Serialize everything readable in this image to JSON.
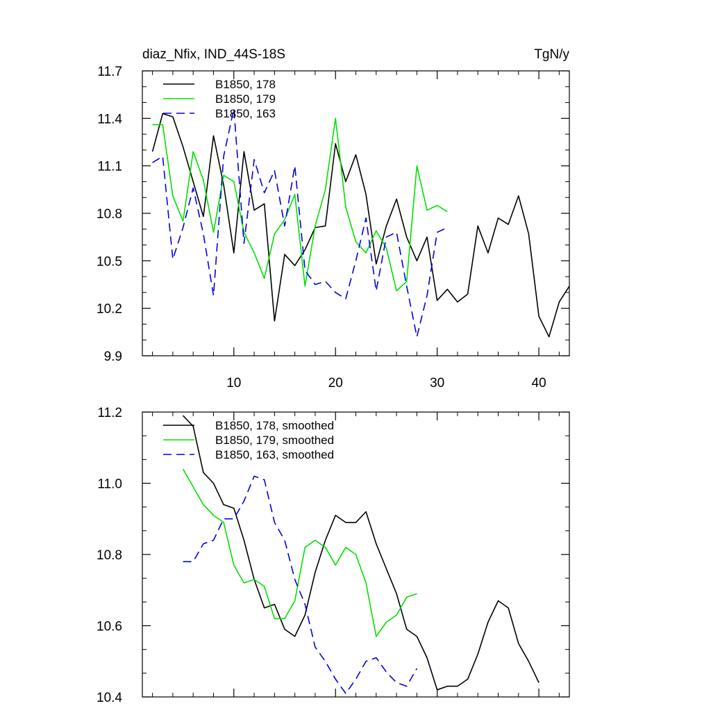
{
  "header": {
    "left_title": "diaz_Nfix, IND_44S-18S",
    "right_title": "TgN/y"
  },
  "chart_data": [
    {
      "type": "line",
      "xlim": [
        1,
        43
      ],
      "ylim": [
        9.9,
        11.7
      ],
      "xticks": [
        10,
        20,
        30,
        40
      ],
      "xtick_labels": [
        "10",
        "20",
        "30",
        "40"
      ],
      "yticks": [
        9.9,
        10.2,
        10.5,
        10.8,
        11.1,
        11.4,
        11.7
      ],
      "ytick_labels": [
        "9.9",
        "10.2",
        "10.5",
        "10.8",
        "11.1",
        "11.4",
        "11.7"
      ],
      "legend_position": "top-left",
      "series": [
        {
          "name": "B1850, 178",
          "color": "#000000",
          "dash": "solid",
          "x": [
            2,
            3,
            4,
            5,
            6,
            7,
            8,
            9,
            10,
            11,
            12,
            13,
            14,
            15,
            16,
            17,
            18,
            19,
            20,
            21,
            22,
            23,
            24,
            25,
            26,
            27,
            28,
            29,
            30,
            31,
            32,
            33,
            34,
            35,
            36,
            37,
            38,
            39,
            40,
            41,
            42,
            43
          ],
          "y": [
            11.19,
            11.43,
            11.41,
            11.22,
            11.0,
            10.78,
            11.29,
            10.98,
            10.55,
            11.19,
            10.82,
            10.86,
            10.12,
            10.54,
            10.47,
            10.57,
            10.71,
            10.72,
            11.24,
            11.0,
            11.17,
            10.92,
            10.48,
            10.72,
            10.89,
            10.65,
            10.5,
            10.65,
            10.25,
            10.32,
            10.24,
            10.29,
            10.72,
            10.55,
            10.77,
            10.73,
            10.91,
            10.67,
            10.15,
            10.02,
            10.24,
            10.34
          ]
        },
        {
          "name": "B1850, 179",
          "color": "#00e000",
          "dash": "solid",
          "x": [
            2,
            3,
            4,
            5,
            6,
            7,
            8,
            9,
            10,
            11,
            12,
            13,
            14,
            15,
            16,
            17,
            18,
            19,
            20,
            21,
            22,
            23,
            24,
            25,
            26,
            27,
            28,
            29,
            30,
            31
          ],
          "y": [
            11.36,
            11.36,
            10.91,
            10.75,
            11.19,
            11.01,
            10.68,
            11.04,
            11.0,
            10.68,
            10.55,
            10.39,
            10.67,
            10.76,
            10.92,
            10.34,
            10.72,
            10.95,
            11.4,
            10.84,
            10.62,
            10.55,
            10.69,
            10.58,
            10.31,
            10.37,
            11.1,
            10.82,
            10.85,
            10.81
          ]
        },
        {
          "name": "B1850, 163",
          "color": "#0000e0",
          "dash": "dashed",
          "x": [
            2,
            3,
            4,
            5,
            6,
            7,
            8,
            9,
            10,
            11,
            12,
            13,
            14,
            15,
            16,
            17,
            18,
            19,
            20,
            21,
            22,
            23,
            24,
            25,
            26,
            27,
            28,
            29,
            30,
            31
          ],
          "y": [
            11.12,
            11.16,
            10.51,
            10.71,
            10.96,
            10.67,
            10.28,
            11.16,
            11.46,
            10.61,
            11.14,
            10.93,
            11.07,
            10.72,
            11.1,
            10.44,
            10.35,
            10.37,
            10.3,
            10.26,
            10.5,
            10.77,
            10.31,
            10.65,
            10.68,
            10.34,
            10.02,
            10.28,
            10.68,
            10.71
          ]
        }
      ]
    },
    {
      "type": "line",
      "xlim": [
        1,
        43
      ],
      "ylim": [
        10.4,
        11.2
      ],
      "xticks": [
        10,
        20,
        30,
        40
      ],
      "yticks": [
        10.4,
        10.6,
        10.8,
        11.0,
        11.2
      ],
      "ytick_labels": [
        "10.4",
        "10.6",
        "10.8",
        "11.0",
        "11.2"
      ],
      "legend_position": "top-left",
      "series": [
        {
          "name": "B1850, 178, smoothed",
          "color": "#000000",
          "dash": "solid",
          "x": [
            5,
            6,
            7,
            8,
            9,
            10,
            11,
            12,
            13,
            14,
            15,
            16,
            17,
            18,
            19,
            20,
            21,
            22,
            23,
            24,
            25,
            26,
            27,
            28,
            29,
            30,
            31,
            32,
            33,
            34,
            35,
            36,
            37,
            38,
            39,
            40
          ],
          "y": [
            11.19,
            11.16,
            11.03,
            11.0,
            10.94,
            10.93,
            10.84,
            10.73,
            10.65,
            10.66,
            10.59,
            10.57,
            10.63,
            10.75,
            10.84,
            10.91,
            10.89,
            10.89,
            10.92,
            10.83,
            10.76,
            10.69,
            10.59,
            10.57,
            10.51,
            10.42,
            10.43,
            10.43,
            10.45,
            10.52,
            10.61,
            10.67,
            10.65,
            10.55,
            10.5,
            10.44
          ]
        },
        {
          "name": "B1850, 179, smoothed",
          "color": "#00e000",
          "dash": "solid",
          "x": [
            5,
            6,
            7,
            8,
            9,
            10,
            11,
            12,
            13,
            14,
            15,
            16,
            17,
            18,
            19,
            20,
            21,
            22,
            23,
            24,
            25,
            26,
            27,
            28
          ],
          "y": [
            11.04,
            10.99,
            10.94,
            10.91,
            10.89,
            10.77,
            10.72,
            10.73,
            10.71,
            10.62,
            10.62,
            10.67,
            10.82,
            10.84,
            10.82,
            10.77,
            10.82,
            10.8,
            10.72,
            10.57,
            10.61,
            10.63,
            10.68,
            10.69
          ]
        },
        {
          "name": "B1850, 163, smoothed",
          "color": "#0000e0",
          "dash": "dashed",
          "x": [
            5,
            6,
            7,
            8,
            9,
            10,
            11,
            12,
            13,
            14,
            15,
            16,
            17,
            18,
            19,
            20,
            21,
            22,
            23,
            24,
            25,
            26,
            27,
            28
          ],
          "y": [
            10.78,
            10.78,
            10.83,
            10.84,
            10.9,
            10.9,
            10.95,
            11.02,
            11.01,
            10.89,
            10.84,
            10.73,
            10.66,
            10.54,
            10.5,
            10.45,
            10.41,
            10.45,
            10.5,
            10.51,
            10.47,
            10.44,
            10.43,
            10.48
          ]
        }
      ]
    }
  ]
}
